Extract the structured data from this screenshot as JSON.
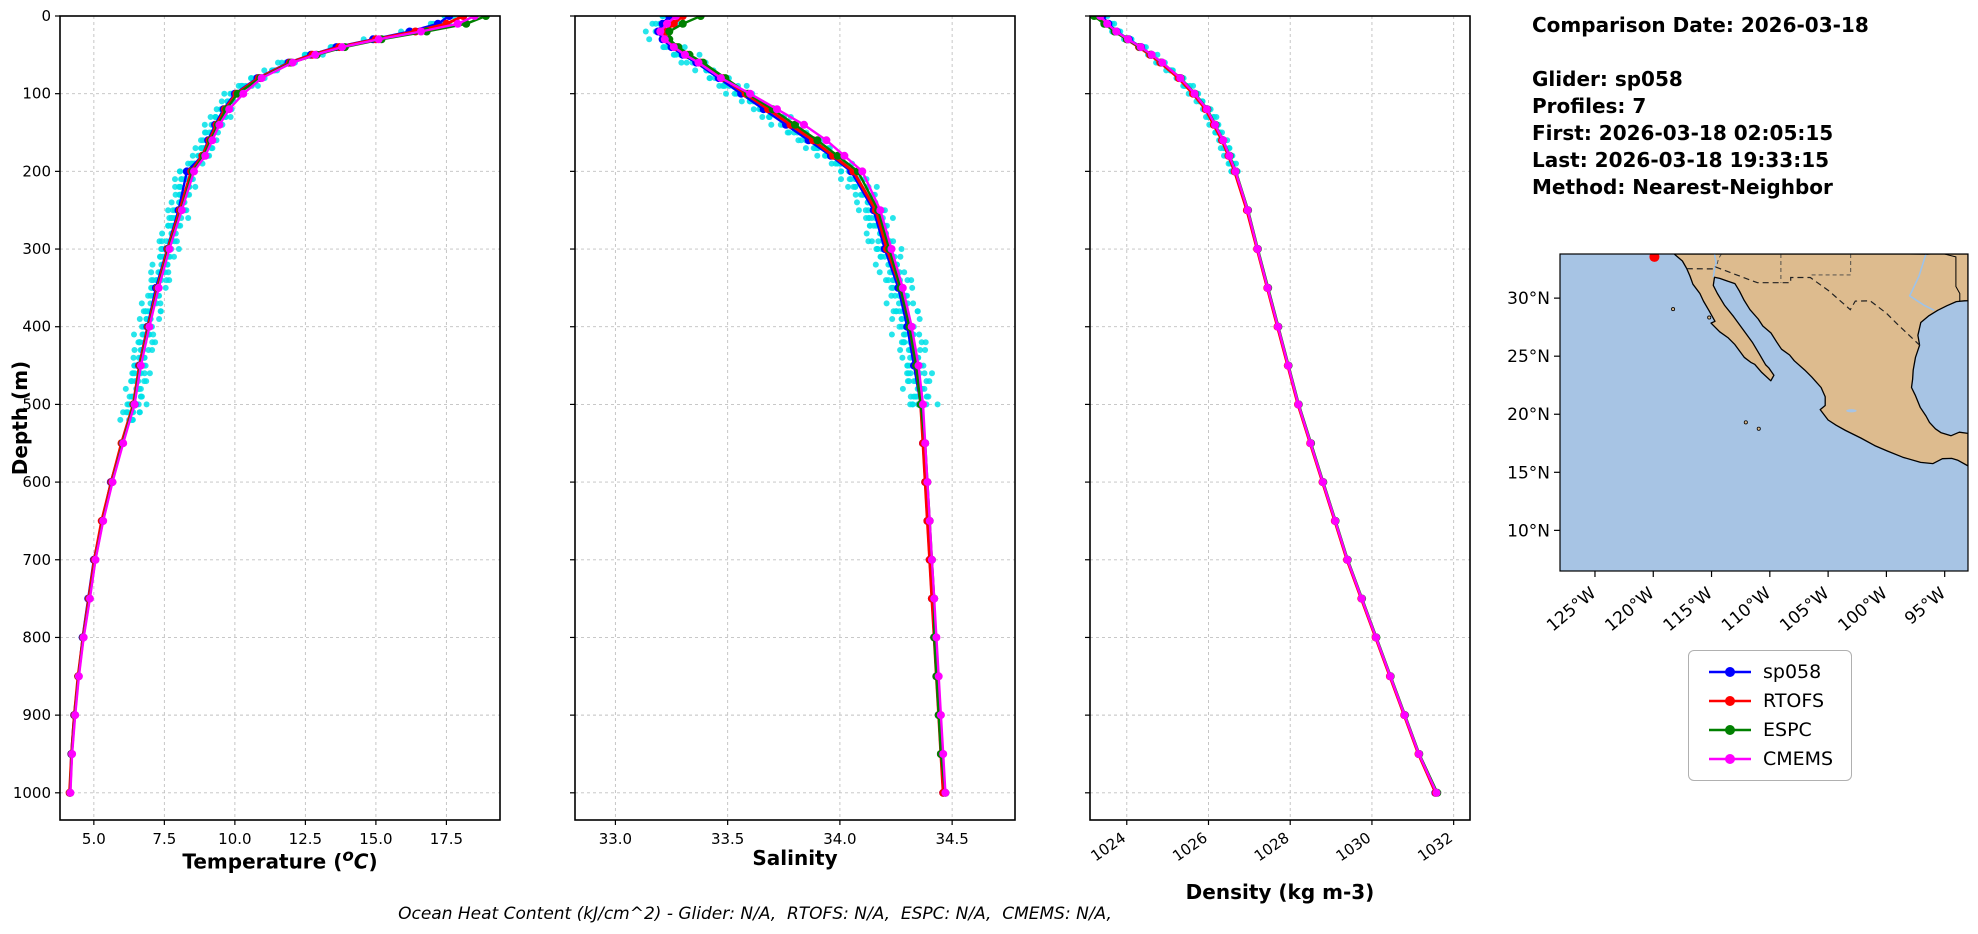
{
  "info_panel": {
    "comparison_date": "Comparison Date: 2026-03-18",
    "glider": "Glider: sp058",
    "profiles": "Profiles: 7",
    "first": "First: 2026-03-18 02:05:15",
    "last": "Last: 2026-03-18 19:33:15",
    "method": "Method: Nearest-Neighbor"
  },
  "footer_note": "Ocean Heat Content (kJ/cm^2) - Glider: N/A,  RTOFS: N/A,  ESPC: N/A,  CMEMS: N/A,",
  "legend": {
    "entries": [
      {
        "label": "sp058",
        "color": "#0000ff"
      },
      {
        "label": "RTOFS",
        "color": "#ff0000"
      },
      {
        "label": "ESPC",
        "color": "#008000"
      },
      {
        "label": "CMEMS",
        "color": "#ff00ff"
      }
    ]
  },
  "map": {
    "ocean_color": "#a7c4e4",
    "land_color": "#ddbb8e",
    "lon_range": [
      -128,
      -93
    ],
    "lat_range": [
      6.5,
      33.8
    ],
    "lat_ticks": [
      {
        "v": 30,
        "label": "30°N"
      },
      {
        "v": 25,
        "label": "25°N"
      },
      {
        "v": 20,
        "label": "20°N"
      },
      {
        "v": 15,
        "label": "15°N"
      },
      {
        "v": 10,
        "label": "10°N"
      }
    ],
    "lon_ticks": [
      {
        "v": -125,
        "label": "125°W"
      },
      {
        "v": -120,
        "label": "120°W"
      },
      {
        "v": -115,
        "label": "115°W"
      },
      {
        "v": -110,
        "label": "110°W"
      },
      {
        "v": -105,
        "label": "105°W"
      },
      {
        "v": -100,
        "label": "100°W"
      },
      {
        "v": -95,
        "label": "95°W"
      }
    ],
    "glider_marker": {
      "lon": -119.9,
      "lat": 33.55,
      "color": "#ff0000"
    },
    "land": [
      [
        -118.2,
        33.8
      ],
      [
        -117.5,
        33.2
      ],
      [
        -117.12,
        32.53
      ],
      [
        -116.85,
        31.9
      ],
      [
        -116.6,
        31.2
      ],
      [
        -116.0,
        30.4
      ],
      [
        -115.7,
        29.75
      ],
      [
        -115.2,
        28.9
      ],
      [
        -114.7,
        28.0
      ],
      [
        -115.05,
        27.85
      ],
      [
        -114.3,
        27.1
      ],
      [
        -113.6,
        26.6
      ],
      [
        -113.0,
        26.0
      ],
      [
        -112.2,
        24.9
      ],
      [
        -111.6,
        24.45
      ],
      [
        -111.3,
        24.3
      ],
      [
        -110.7,
        23.6
      ],
      [
        -109.92,
        22.88
      ],
      [
        -109.65,
        23.35
      ],
      [
        -110.1,
        24.0
      ],
      [
        -110.35,
        24.25
      ],
      [
        -110.9,
        25.2
      ],
      [
        -111.5,
        26.2
      ],
      [
        -112.3,
        27.3
      ],
      [
        -113.1,
        28.4
      ],
      [
        -113.9,
        29.4
      ],
      [
        -114.5,
        30.4
      ],
      [
        -114.85,
        31.1
      ],
      [
        -114.75,
        31.8
      ],
      [
        -114.3,
        31.7
      ],
      [
        -113.6,
        31.45
      ],
      [
        -113.0,
        31.25
      ],
      [
        -112.6,
        30.6
      ],
      [
        -112.2,
        29.8
      ],
      [
        -111.7,
        29.0
      ],
      [
        -111.0,
        28.2
      ],
      [
        -110.6,
        27.6
      ],
      [
        -109.9,
        27.0
      ],
      [
        -109.4,
        26.2
      ],
      [
        -109.0,
        25.6
      ],
      [
        -108.3,
        25.1
      ],
      [
        -107.9,
        24.6
      ],
      [
        -107.0,
        23.8
      ],
      [
        -106.4,
        23.2
      ],
      [
        -105.6,
        22.3
      ],
      [
        -105.25,
        21.5
      ],
      [
        -105.25,
        20.75
      ],
      [
        -105.68,
        20.4
      ],
      [
        -105.0,
        19.5
      ],
      [
        -104.3,
        19.05
      ],
      [
        -103.5,
        18.6
      ],
      [
        -102.2,
        17.95
      ],
      [
        -101.0,
        17.3
      ],
      [
        -99.9,
        16.83
      ],
      [
        -98.6,
        16.3
      ],
      [
        -97.07,
        15.85
      ],
      [
        -96.0,
        15.75
      ],
      [
        -95.2,
        16.17
      ],
      [
        -94.4,
        16.2
      ],
      [
        -93.9,
        16.05
      ],
      [
        -93.0,
        15.55
      ],
      [
        -93.0,
        18.35
      ],
      [
        -93.75,
        18.45
      ],
      [
        -94.45,
        18.15
      ],
      [
        -95.3,
        18.4
      ],
      [
        -95.8,
        18.75
      ],
      [
        -96.3,
        19.3
      ],
      [
        -96.6,
        19.85
      ],
      [
        -97.1,
        20.6
      ],
      [
        -97.5,
        21.6
      ],
      [
        -97.85,
        22.3
      ],
      [
        -97.75,
        23.0
      ],
      [
        -97.7,
        23.8
      ],
      [
        -97.5,
        24.9
      ],
      [
        -97.15,
        25.95
      ],
      [
        -97.3,
        26.8
      ],
      [
        -97.05,
        27.9
      ],
      [
        -96.4,
        28.45
      ],
      [
        -95.6,
        28.95
      ],
      [
        -94.8,
        29.35
      ],
      [
        -94.0,
        29.7
      ],
      [
        -93.3,
        29.77
      ],
      [
        -93.0,
        29.78
      ],
      [
        -93.0,
        33.8
      ]
    ],
    "borders": [
      [
        [
          -117.12,
          32.53
        ],
        [
          -114.8,
          32.52
        ],
        [
          -114.7,
          32.7
        ],
        [
          -111.07,
          31.33
        ],
        [
          -108.21,
          31.33
        ],
        [
          -108.21,
          31.78
        ],
        [
          -106.53,
          31.78
        ],
        [
          -104.9,
          30.6
        ],
        [
          -103.1,
          29.0
        ],
        [
          -102.67,
          29.74
        ],
        [
          -101.4,
          29.77
        ],
        [
          -100.0,
          28.7
        ],
        [
          -99.1,
          27.8
        ],
        [
          -97.15,
          25.95
        ]
      ]
    ],
    "state_lines": [
      [
        [
          -114.15,
          33.8
        ],
        [
          -114.4,
          33.4
        ],
        [
          -114.5,
          33.0
        ],
        [
          -114.7,
          32.7
        ]
      ],
      [
        [
          -109.05,
          33.8
        ],
        [
          -109.05,
          31.33
        ]
      ],
      [
        [
          -103.06,
          33.8
        ],
        [
          -103.06,
          32.0
        ],
        [
          -106.62,
          32.0
        ]
      ]
    ],
    "solid_lines": [
      [
        [
          -98.0,
          33.8
        ],
        [
          -96.5,
          33.77
        ],
        [
          -95.3,
          33.87
        ],
        [
          -94.04,
          33.55
        ],
        [
          -94.04,
          31.0
        ],
        [
          -93.7,
          30.4
        ],
        [
          -93.7,
          29.75
        ]
      ]
    ],
    "rivers": [
      [
        [
          -96.6,
          33.8
        ],
        [
          -97.2,
          31.9
        ],
        [
          -98.0,
          30.2
        ],
        [
          -96.8,
          29.4
        ],
        [
          -95.9,
          28.95
        ]
      ],
      [
        [
          -114.75,
          33.8
        ],
        [
          -114.6,
          33.0
        ],
        [
          -114.7,
          32.7
        ],
        [
          -114.85,
          31.8
        ]
      ]
    ],
    "lakes": [
      {
        "lon": -103.0,
        "lat": 20.3,
        "rlon": 0.45,
        "rlat": 0.14
      }
    ],
    "islands": [
      [
        -118.3,
        29.05
      ],
      [
        -115.2,
        28.33
      ],
      [
        -110.95,
        18.75
      ],
      [
        -112.06,
        19.3
      ]
    ]
  },
  "chart_data": {
    "type": "line",
    "orientation": "vertical-profile",
    "grid": true,
    "depth_axis": {
      "label": "Depth (m)",
      "ticks": [
        0,
        100,
        200,
        300,
        400,
        500,
        600,
        700,
        800,
        900,
        1000
      ],
      "range": [
        0,
        1035
      ]
    },
    "depths": [
      0,
      10,
      20,
      30,
      40,
      50,
      60,
      80,
      100,
      120,
      140,
      160,
      180,
      200,
      250,
      300,
      350,
      400,
      450,
      500,
      550,
      600,
      650,
      700,
      750,
      800,
      850,
      900,
      950,
      1000
    ],
    "panels": [
      {
        "id": "temperature",
        "var": "temperature",
        "xlabel": {
          "pre": "Temperature (",
          "sup": "o",
          "ital": "C",
          "close": ")"
        },
        "xlim": [
          3.8,
          19.4
        ],
        "xticks": [
          5.0,
          7.5,
          10.0,
          12.5,
          15.0,
          17.5
        ],
        "xtick_labels": [
          "5.0",
          "7.5",
          "10.0",
          "12.5",
          "15.0",
          "17.5"
        ],
        "rotate_ticks": false
      },
      {
        "id": "salinity",
        "var": "salinity",
        "xlabel": {
          "pre": "Salinity"
        },
        "xlim": [
          32.82,
          34.78
        ],
        "xticks": [
          33.0,
          33.5,
          34.0,
          34.5
        ],
        "xtick_labels": [
          "33.0",
          "33.5",
          "34.0",
          "34.5"
        ],
        "rotate_ticks": false
      },
      {
        "id": "density",
        "var": "density",
        "xlabel": {
          "pre": "Density (kg m-3)"
        },
        "xlim": [
          1023.1,
          1032.4
        ],
        "xticks": [
          1024,
          1026,
          1028,
          1030,
          1032
        ],
        "xtick_labels": [
          "1024",
          "1026",
          "1028",
          "1030",
          "1032"
        ],
        "rotate_ticks": true
      }
    ],
    "series": [
      {
        "name": "sp058",
        "color": "#0000ff",
        "temperature": [
          17.6,
          17.2,
          16.2,
          14.9,
          13.6,
          12.7,
          11.9,
          10.8,
          10.0,
          9.6,
          9.3,
          9.05,
          8.85,
          8.3,
          8.0,
          7.6,
          7.2,
          6.9,
          6.6,
          6.45,
          6.0,
          5.6,
          5.3,
          5.0,
          4.8,
          4.6,
          4.45,
          4.3,
          4.2,
          4.15
        ],
        "salinity": [
          33.24,
          33.21,
          33.19,
          33.21,
          33.25,
          33.3,
          33.36,
          33.46,
          33.56,
          33.66,
          33.76,
          33.86,
          33.96,
          34.05,
          34.15,
          34.2,
          34.26,
          34.3,
          34.33,
          34.36,
          34.37,
          34.38,
          34.39,
          34.4,
          34.41,
          34.42,
          34.43,
          34.44,
          34.45,
          34.46
        ],
        "density": [
          1023.4,
          1023.55,
          1023.75,
          1024.05,
          1024.35,
          1024.6,
          1024.85,
          1025.3,
          1025.65,
          1025.95,
          1026.15,
          1026.35,
          1026.5,
          1026.65,
          1026.95,
          1027.2,
          1027.45,
          1027.7,
          1027.95,
          1028.2,
          1028.5,
          1028.8,
          1029.1,
          1029.4,
          1029.75,
          1030.1,
          1030.45,
          1030.8,
          1031.15,
          1031.55
        ]
      },
      {
        "name": "RTOFS",
        "color": "#ff0000",
        "temperature": [
          18.1,
          17.5,
          16.4,
          15.0,
          13.7,
          12.75,
          11.95,
          10.85,
          10.05,
          9.65,
          9.35,
          9.1,
          8.85,
          8.45,
          8.05,
          7.62,
          7.25,
          6.92,
          6.62,
          6.4,
          5.98,
          5.62,
          5.28,
          5.02,
          4.82,
          4.62,
          4.44,
          4.31,
          4.21,
          4.14
        ],
        "salinity": [
          33.3,
          33.26,
          33.22,
          33.23,
          33.27,
          33.32,
          33.38,
          33.48,
          33.58,
          33.68,
          33.78,
          33.88,
          33.97,
          34.06,
          34.16,
          34.21,
          34.27,
          34.31,
          34.34,
          34.36,
          34.37,
          34.38,
          34.39,
          34.4,
          34.41,
          34.42,
          34.43,
          34.44,
          34.45,
          34.46
        ],
        "density": [
          1023.3,
          1023.5,
          1023.72,
          1024.0,
          1024.3,
          1024.57,
          1024.82,
          1025.27,
          1025.62,
          1025.93,
          1026.13,
          1026.33,
          1026.49,
          1026.64,
          1026.94,
          1027.19,
          1027.44,
          1027.69,
          1027.94,
          1028.19,
          1028.49,
          1028.79,
          1029.09,
          1029.39,
          1029.74,
          1030.09,
          1030.44,
          1030.79,
          1031.14,
          1031.56
        ]
      },
      {
        "name": "ESPC",
        "color": "#008000",
        "temperature": [
          18.9,
          18.2,
          16.8,
          15.2,
          13.9,
          12.9,
          12.0,
          10.9,
          10.1,
          9.7,
          9.4,
          9.15,
          8.9,
          8.5,
          8.1,
          7.65,
          7.28,
          6.95,
          6.65,
          6.42,
          6.02,
          5.65,
          5.32,
          5.05,
          4.85,
          4.63,
          4.46,
          4.33,
          4.22,
          4.16
        ],
        "salinity": [
          33.38,
          33.3,
          33.24,
          33.24,
          33.28,
          33.33,
          33.39,
          33.49,
          33.59,
          33.7,
          33.8,
          33.9,
          33.99,
          34.08,
          34.17,
          34.22,
          34.27,
          34.31,
          34.34,
          34.36,
          34.38,
          34.39,
          34.4,
          34.41,
          34.42,
          34.42,
          34.43,
          34.44,
          34.45,
          34.47
        ],
        "density": [
          1023.2,
          1023.45,
          1023.7,
          1024.0,
          1024.32,
          1024.6,
          1024.86,
          1025.32,
          1025.67,
          1025.97,
          1026.17,
          1026.36,
          1026.52,
          1026.67,
          1026.97,
          1027.21,
          1027.46,
          1027.71,
          1027.96,
          1028.21,
          1028.51,
          1028.81,
          1029.11,
          1029.41,
          1029.76,
          1030.11,
          1030.46,
          1030.81,
          1031.16,
          1031.6
        ]
      },
      {
        "name": "CMEMS",
        "color": "#ff00ff",
        "temperature": [
          18.5,
          17.9,
          16.6,
          15.1,
          13.8,
          12.85,
          12.05,
          10.95,
          10.3,
          9.8,
          9.45,
          9.2,
          8.95,
          8.55,
          8.12,
          7.68,
          7.3,
          6.97,
          6.67,
          6.44,
          6.04,
          5.66,
          5.33,
          5.06,
          4.86,
          4.64,
          4.47,
          4.34,
          4.23,
          4.17
        ],
        "salinity": [
          33.27,
          33.23,
          33.2,
          33.22,
          33.26,
          33.31,
          33.37,
          33.47,
          33.6,
          33.72,
          33.84,
          33.94,
          34.02,
          34.1,
          34.18,
          34.23,
          34.28,
          34.32,
          34.35,
          34.37,
          34.38,
          34.39,
          34.4,
          34.41,
          34.42,
          34.43,
          34.44,
          34.45,
          34.46,
          34.47
        ],
        "density": [
          1023.35,
          1023.52,
          1023.74,
          1024.03,
          1024.34,
          1024.61,
          1024.87,
          1025.31,
          1025.66,
          1025.96,
          1026.16,
          1026.36,
          1026.51,
          1026.66,
          1026.96,
          1027.2,
          1027.45,
          1027.7,
          1027.95,
          1028.2,
          1028.5,
          1028.8,
          1029.1,
          1029.4,
          1029.75,
          1030.1,
          1030.45,
          1030.8,
          1031.15,
          1031.58
        ]
      }
    ],
    "glider_scatter": {
      "color": "#00e0e8",
      "profiles": 7,
      "panels": {
        "temperature": {
          "amplitude": 0.28,
          "max_depth": 520
        },
        "salinity": {
          "amplitude": 0.05,
          "max_depth": 500
        },
        "density": {
          "amplitude": 0.1,
          "max_depth": 200
        }
      }
    }
  }
}
